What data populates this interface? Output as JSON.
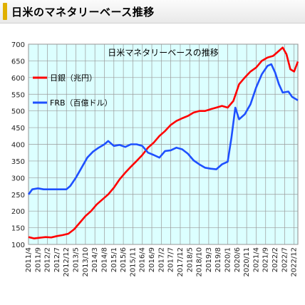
{
  "header": {
    "title": "日米のマネタリーベース推移"
  },
  "chart_data": {
    "type": "line",
    "title": "日米マネタリーベースの推移",
    "ylim": [
      100,
      700
    ],
    "yticks": [
      100,
      150,
      200,
      250,
      300,
      350,
      400,
      450,
      500,
      550,
      600,
      650,
      700
    ],
    "xlim": [
      "2011-04",
      "2023-02"
    ],
    "xticks": [
      "2011/4",
      "2011/9",
      "2012/2",
      "2012/7",
      "2012/12",
      "2013/5",
      "2013/10",
      "2014/3",
      "2014/8",
      "2015/1",
      "2015/6",
      "2015/11",
      "2016/4",
      "2016/9",
      "2017/2",
      "2017/7",
      "2017/12",
      "2018/5",
      "2018/10",
      "2019/3",
      "2019/8",
      "2020/1",
      "2020/6",
      "2020/11",
      "2021/4",
      "2021/9",
      "2022/2",
      "2022/7",
      "2022/12"
    ],
    "grid": true,
    "legend_position": "top-left",
    "colors": {
      "plot_bg": "#dcffff",
      "grid": "#9a9a9a",
      "japan": "#ff0000",
      "us": "#1e50ff"
    },
    "series": [
      {
        "name": "日銀（兆円）",
        "color": "#ff0000",
        "points": [
          [
            "2011-04",
            122
          ],
          [
            "2011-07",
            118
          ],
          [
            "2011-10",
            120
          ],
          [
            "2012-01",
            122
          ],
          [
            "2012-04",
            121
          ],
          [
            "2012-07",
            125
          ],
          [
            "2012-10",
            128
          ],
          [
            "2013-01",
            132
          ],
          [
            "2013-04",
            145
          ],
          [
            "2013-07",
            165
          ],
          [
            "2013-10",
            185
          ],
          [
            "2014-01",
            200
          ],
          [
            "2014-04",
            220
          ],
          [
            "2014-07",
            235
          ],
          [
            "2014-10",
            250
          ],
          [
            "2015-01",
            270
          ],
          [
            "2015-04",
            295
          ],
          [
            "2015-07",
            315
          ],
          [
            "2015-10",
            333
          ],
          [
            "2016-01",
            350
          ],
          [
            "2016-04",
            368
          ],
          [
            "2016-07",
            390
          ],
          [
            "2016-10",
            405
          ],
          [
            "2017-01",
            425
          ],
          [
            "2017-04",
            440
          ],
          [
            "2017-07",
            458
          ],
          [
            "2017-10",
            470
          ],
          [
            "2018-01",
            478
          ],
          [
            "2018-04",
            485
          ],
          [
            "2018-07",
            495
          ],
          [
            "2018-10",
            500
          ],
          [
            "2019-01",
            500
          ],
          [
            "2019-04",
            505
          ],
          [
            "2019-07",
            510
          ],
          [
            "2019-10",
            515
          ],
          [
            "2020-01",
            510
          ],
          [
            "2020-04",
            530
          ],
          [
            "2020-07",
            580
          ],
          [
            "2020-10",
            600
          ],
          [
            "2021-01",
            618
          ],
          [
            "2021-04",
            630
          ],
          [
            "2021-07",
            650
          ],
          [
            "2021-10",
            660
          ],
          [
            "2022-01",
            665
          ],
          [
            "2022-04",
            680
          ],
          [
            "2022-06",
            690
          ],
          [
            "2022-08",
            670
          ],
          [
            "2022-10",
            625
          ],
          [
            "2022-12",
            618
          ],
          [
            "2023-02",
            648
          ]
        ]
      },
      {
        "name": "FRB（百億ドル）",
        "color": "#1e50ff",
        "points": [
          [
            "2011-04",
            250
          ],
          [
            "2011-06",
            265
          ],
          [
            "2011-09",
            268
          ],
          [
            "2011-12",
            265
          ],
          [
            "2012-03",
            265
          ],
          [
            "2012-06",
            265
          ],
          [
            "2012-09",
            265
          ],
          [
            "2012-12",
            265
          ],
          [
            "2013-02",
            275
          ],
          [
            "2013-05",
            300
          ],
          [
            "2013-08",
            330
          ],
          [
            "2013-11",
            360
          ],
          [
            "2014-02",
            378
          ],
          [
            "2014-05",
            390
          ],
          [
            "2014-08",
            400
          ],
          [
            "2014-10",
            410
          ],
          [
            "2015-01",
            395
          ],
          [
            "2015-04",
            398
          ],
          [
            "2015-07",
            392
          ],
          [
            "2015-10",
            400
          ],
          [
            "2016-01",
            400
          ],
          [
            "2016-04",
            395
          ],
          [
            "2016-07",
            375
          ],
          [
            "2016-10",
            368
          ],
          [
            "2017-01",
            360
          ],
          [
            "2017-04",
            380
          ],
          [
            "2017-07",
            382
          ],
          [
            "2017-10",
            390
          ],
          [
            "2018-01",
            385
          ],
          [
            "2018-04",
            372
          ],
          [
            "2018-07",
            352
          ],
          [
            "2018-10",
            340
          ],
          [
            "2019-01",
            330
          ],
          [
            "2019-04",
            327
          ],
          [
            "2019-07",
            325
          ],
          [
            "2019-10",
            340
          ],
          [
            "2020-01",
            348
          ],
          [
            "2020-03",
            420
          ],
          [
            "2020-05",
            510
          ],
          [
            "2020-07",
            475
          ],
          [
            "2020-10",
            490
          ],
          [
            "2021-01",
            520
          ],
          [
            "2021-04",
            570
          ],
          [
            "2021-07",
            610
          ],
          [
            "2021-10",
            635
          ],
          [
            "2021-12",
            640
          ],
          [
            "2022-02",
            615
          ],
          [
            "2022-04",
            580
          ],
          [
            "2022-06",
            555
          ],
          [
            "2022-09",
            558
          ],
          [
            "2022-11",
            542
          ],
          [
            "2023-02",
            532
          ]
        ]
      }
    ]
  }
}
